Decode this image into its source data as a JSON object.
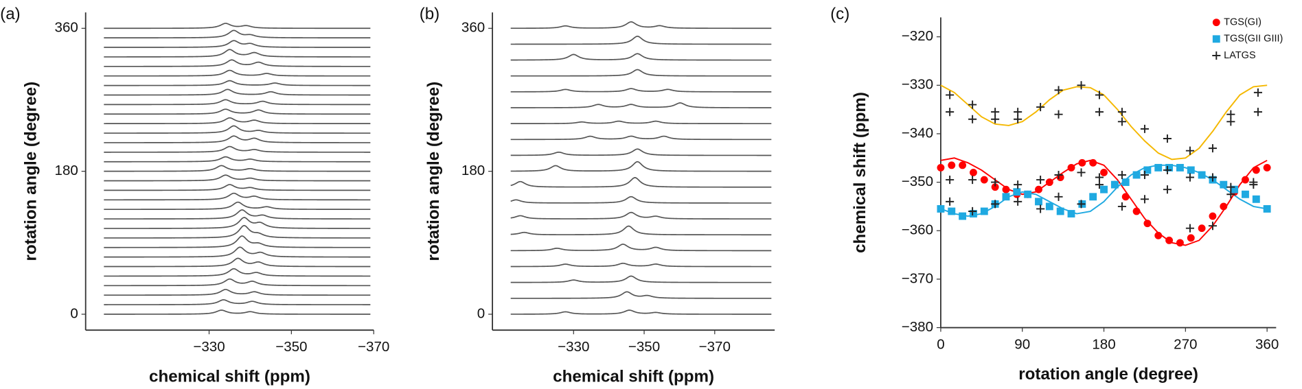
{
  "chart_data": [
    {
      "type": "stacked_spectra",
      "panel_label": "(a)",
      "x_label": "chemical shift (ppm)",
      "y_label": "rotation angle (degree)",
      "xlim": [
        -300,
        -370
      ],
      "ylim": [
        -20,
        380
      ],
      "xticks": [
        {
          "value": -330,
          "label": "−330"
        },
        {
          "value": -350,
          "label": "−350"
        },
        {
          "value": -370,
          "label": "−370"
        }
      ],
      "yticks": [
        0,
        180,
        360
      ],
      "color": "#555555",
      "traces": [
        {
          "angle": 0,
          "peaks": [
            -333,
            -340
          ],
          "heights": [
            5,
            3
          ]
        },
        {
          "angle": 12,
          "peaks": [
            -333.5,
            -340.5
          ],
          "heights": [
            6,
            4
          ]
        },
        {
          "angle": 24,
          "peaks": [
            -334,
            -341
          ],
          "heights": [
            7,
            4
          ]
        },
        {
          "angle": 36,
          "peaks": [
            -335,
            -340.5
          ],
          "heights": [
            8,
            5
          ]
        },
        {
          "angle": 48,
          "peaks": [
            -336,
            -341.5
          ],
          "heights": [
            9,
            4
          ]
        },
        {
          "angle": 60,
          "peaks": [
            -337,
            -342
          ],
          "heights": [
            10,
            5
          ]
        },
        {
          "angle": 72,
          "peaks": [
            -337.5,
            -342.5
          ],
          "heights": [
            12,
            5
          ]
        },
        {
          "angle": 84,
          "peaks": [
            -338,
            -342
          ],
          "heights": [
            14,
            4
          ]
        },
        {
          "angle": 96,
          "peaks": [
            -338.5,
            -342
          ],
          "heights": [
            15,
            4
          ]
        },
        {
          "angle": 108,
          "peaks": [
            -338.5,
            -342.4
          ],
          "heights": [
            13,
            6
          ]
        },
        {
          "angle": 120,
          "peaks": [
            -338,
            -343
          ],
          "heights": [
            11,
            4
          ]
        },
        {
          "angle": 132,
          "peaks": [
            -337,
            -344
          ],
          "heights": [
            9,
            3
          ]
        },
        {
          "angle": 144,
          "peaks": [
            -336,
            -341
          ],
          "heights": [
            8,
            4
          ]
        },
        {
          "angle": 156,
          "peaks": [
            -335,
            -340
          ],
          "heights": [
            7,
            3
          ]
        },
        {
          "angle": 168,
          "peaks": [
            -334,
            -340
          ],
          "heights": [
            7,
            3
          ]
        },
        {
          "angle": 180,
          "peaks": [
            -333,
            -340
          ],
          "heights": [
            7,
            3
          ]
        },
        {
          "angle": 192,
          "peaks": [
            -334,
            -340
          ],
          "heights": [
            6,
            3
          ]
        },
        {
          "angle": 204,
          "peaks": [
            -335,
            -341
          ],
          "heights": [
            7,
            3
          ]
        },
        {
          "angle": 216,
          "peaks": [
            -336,
            -341
          ],
          "heights": [
            8,
            5
          ]
        },
        {
          "angle": 228,
          "peaks": [
            -336,
            -342
          ],
          "heights": [
            9,
            3
          ]
        },
        {
          "angle": 240,
          "peaks": [
            -335,
            -341
          ],
          "heights": [
            7,
            4
          ]
        },
        {
          "angle": 252,
          "peaks": [
            -334,
            -342
          ],
          "heights": [
            6,
            5
          ]
        },
        {
          "angle": 264,
          "peaks": [
            -334,
            -343
          ],
          "heights": [
            6,
            4
          ]
        },
        {
          "angle": 276,
          "peaks": [
            -334.5,
            -345
          ],
          "heights": [
            7,
            4
          ]
        },
        {
          "angle": 288,
          "peaks": [
            -335,
            -346
          ],
          "heights": [
            6,
            3
          ]
        },
        {
          "angle": 300,
          "peaks": [
            -335,
            -344
          ],
          "heights": [
            7,
            3
          ]
        },
        {
          "angle": 312,
          "peaks": [
            -335.5,
            -342
          ],
          "heights": [
            8,
            5
          ]
        },
        {
          "angle": 324,
          "peaks": [
            -335,
            -341
          ],
          "heights": [
            9,
            5
          ]
        },
        {
          "angle": 336,
          "peaks": [
            -336,
            -340
          ],
          "heights": [
            8,
            4
          ]
        },
        {
          "angle": 348,
          "peaks": [
            -336,
            -340
          ],
          "heights": [
            9,
            3
          ]
        },
        {
          "angle": 360,
          "peaks": [
            -334,
            -339
          ],
          "heights": [
            6,
            3
          ]
        }
      ]
    },
    {
      "type": "stacked_spectra",
      "panel_label": "(b)",
      "x_label": "chemical shift (ppm)",
      "y_label": "rotation angle (degree)",
      "xlim": [
        -307,
        -387
      ],
      "ylim": [
        -20,
        380
      ],
      "xticks": [
        {
          "value": -330,
          "label": "−330"
        },
        {
          "value": -350,
          "label": "−350"
        },
        {
          "value": -370,
          "label": "−370"
        }
      ],
      "yticks": [
        0,
        180,
        360
      ],
      "color": "#555555",
      "traces": [
        {
          "angle": 0,
          "peaks": [
            -327.7,
            -345.8,
            -353.3
          ],
          "heights": [
            3,
            5,
            2
          ]
        },
        {
          "angle": 20,
          "peaks": [
            -345.1,
            -350.9
          ],
          "heights": [
            8,
            3
          ]
        },
        {
          "angle": 40,
          "peaks": [
            -330,
            -346.3
          ],
          "heights": [
            3,
            8
          ]
        },
        {
          "angle": 60,
          "peaks": [
            -327.7,
            -344,
            -353.3
          ],
          "heights": [
            3,
            4,
            3
          ]
        },
        {
          "angle": 80,
          "peaks": [
            -325.3,
            -344,
            -353.3
          ],
          "heights": [
            3,
            8,
            4
          ]
        },
        {
          "angle": 100,
          "peaks": [
            -316,
            -345.6
          ],
          "heights": [
            3,
            11
          ]
        },
        {
          "angle": 120,
          "peaks": [
            -314.9,
            -346.3,
            -353.3
          ],
          "heights": [
            4,
            8,
            3
          ]
        },
        {
          "angle": 140,
          "peaks": [
            -313.7,
            -346.3
          ],
          "heights": [
            4,
            8
          ]
        },
        {
          "angle": 160,
          "peaks": [
            -314.9,
            -347.4
          ],
          "heights": [
            7,
            12
          ]
        },
        {
          "angle": 180,
          "peaks": [
            -324.9,
            -348.1
          ],
          "heights": [
            7,
            12
          ]
        },
        {
          "angle": 200,
          "peaks": [
            -325.8,
            -348.1
          ],
          "heights": [
            4,
            8
          ]
        },
        {
          "angle": 220,
          "peaks": [
            -334.7,
            -346.3,
            -355.6
          ],
          "heights": [
            4,
            4,
            4
          ]
        },
        {
          "angle": 240,
          "peaks": [
            -332.3,
            -342.8,
            -353.3
          ],
          "heights": [
            2,
            3,
            3
          ]
        },
        {
          "angle": 260,
          "peaks": [
            -337,
            -346.3,
            -360.2
          ],
          "heights": [
            4,
            4,
            6
          ]
        },
        {
          "angle": 280,
          "peaks": [
            -327.7,
            -346.3,
            -356.7
          ],
          "heights": [
            3,
            4,
            3
          ]
        },
        {
          "angle": 300,
          "peaks": [
            -348.1
          ],
          "heights": [
            8
          ]
        },
        {
          "angle": 320,
          "peaks": [
            -330,
            -348.1
          ],
          "heights": [
            7,
            8
          ]
        },
        {
          "angle": 340,
          "peaks": [
            -348.1
          ],
          "heights": [
            10
          ]
        },
        {
          "angle": 360,
          "peaks": [
            -327.7,
            -346.3,
            -354.4
          ],
          "heights": [
            3,
            8,
            3
          ]
        }
      ]
    },
    {
      "type": "scatter",
      "panel_label": "(c)",
      "x_label": "rotation angle (degree)",
      "y_label": "chemical shift (ppm)",
      "xlim": [
        0,
        370
      ],
      "ylim": [
        -380,
        -316
      ],
      "xticks": [
        0,
        90,
        180,
        270,
        360
      ],
      "yticks": [
        {
          "value": -380,
          "label": "−380"
        },
        {
          "value": -370,
          "label": "−370"
        },
        {
          "value": -360,
          "label": "−360"
        },
        {
          "value": -350,
          "label": "−350"
        },
        {
          "value": -340,
          "label": "−340"
        },
        {
          "value": -330,
          "label": "−330"
        },
        {
          "value": -320,
          "label": "−320"
        }
      ],
      "legend": "top-right",
      "series": [
        {
          "name": "TGS(GI)",
          "color": "#ff0000",
          "marker": "circle",
          "x": [
            0,
            12,
            24,
            36,
            48,
            60,
            72,
            84,
            96,
            108,
            120,
            132,
            144,
            156,
            168,
            180,
            192,
            204,
            216,
            228,
            240,
            252,
            264,
            276,
            288,
            300,
            312,
            324,
            336,
            348,
            360
          ],
          "values": [
            -347,
            -346.5,
            -346.5,
            -348,
            -349.5,
            -351,
            -351.5,
            -352.5,
            -352.5,
            -351.5,
            -350,
            -349,
            -347,
            -346,
            -346,
            -348,
            -350.5,
            -353,
            -356,
            -358.5,
            -361,
            -362,
            -362.5,
            -361.5,
            -359.5,
            -357,
            -355,
            -352,
            -349.5,
            -347.5,
            -347
          ]
        },
        {
          "name": "TGS(GII GIII)",
          "color": "#1fa9e1",
          "marker": "square",
          "x": [
            0,
            12,
            24,
            36,
            48,
            60,
            72,
            84,
            96,
            108,
            120,
            132,
            144,
            156,
            168,
            180,
            192,
            204,
            216,
            228,
            240,
            252,
            264,
            276,
            288,
            300,
            312,
            324,
            336,
            348,
            360
          ],
          "values": [
            -355.5,
            -356,
            -357,
            -356.5,
            -356,
            -354.5,
            -353,
            -352,
            -352.5,
            -354,
            -355,
            -356,
            -356.5,
            -354.5,
            -353,
            -351.5,
            -350.5,
            -350,
            -348.5,
            -347.5,
            -347,
            -347,
            -347,
            -347.5,
            -348.5,
            -349.5,
            -350.5,
            -351.5,
            -352.5,
            -353.5,
            -355.5
          ]
        },
        {
          "name": "LATGS",
          "color": "#222222",
          "marker": "plus",
          "x": [
            10,
            10,
            35,
            35,
            60,
            60,
            85,
            85,
            110,
            130,
            130,
            155,
            175,
            175,
            200,
            200,
            225,
            250,
            275,
            300,
            320,
            320,
            350,
            350,
            10,
            10,
            35,
            35,
            60,
            60,
            85,
            85,
            110,
            110,
            130,
            130,
            155,
            155,
            175,
            175,
            200,
            200,
            225,
            225,
            250,
            250,
            275,
            275,
            300,
            300,
            320,
            320,
            345,
            345
          ],
          "values": [
            -332,
            -335.5,
            -334,
            -337,
            -335.5,
            -337,
            -335.5,
            -337,
            -334.5,
            -331,
            -336,
            -330,
            -332,
            -335.5,
            -335.5,
            -337.5,
            -339,
            -341,
            -343.5,
            -343,
            -336,
            -337.5,
            -331.5,
            -335.5,
            -349.5,
            -354,
            -349.5,
            -356,
            -350,
            -354.5,
            -350.5,
            -354,
            -349.5,
            -355.5,
            -348.5,
            -353,
            -348,
            -354.5,
            -349,
            -350.5,
            -348.5,
            -355,
            -348.5,
            -353.5,
            -347.5,
            -351.5,
            -349,
            -359.5,
            -349,
            -359,
            -351,
            -352.5,
            -350,
            -350.5
          ]
        },
        {
          "color": "#f5b800",
          "marker": "line",
          "x": [
            0,
            15,
            30,
            45,
            60,
            75,
            90,
            105,
            120,
            135,
            150,
            165,
            180,
            195,
            210,
            225,
            240,
            255,
            270,
            285,
            300,
            315,
            330,
            345,
            360
          ],
          "values": [
            -330,
            -331.5,
            -334,
            -336.5,
            -338,
            -338.3,
            -337.5,
            -335.5,
            -333,
            -331,
            -330.3,
            -330.5,
            -332,
            -335,
            -338.5,
            -341.5,
            -344,
            -345.3,
            -345,
            -343,
            -339.5,
            -335.5,
            -332,
            -330.3,
            -330
          ]
        },
        {
          "color": "#ff0000",
          "marker": "line",
          "x": [
            0,
            15,
            30,
            45,
            60,
            75,
            90,
            105,
            120,
            135,
            150,
            165,
            180,
            195,
            210,
            225,
            240,
            255,
            270,
            285,
            300,
            315,
            330,
            345,
            360
          ],
          "values": [
            -345.5,
            -345,
            -346,
            -347.5,
            -349.5,
            -351.5,
            -352.5,
            -352,
            -350,
            -348,
            -346.2,
            -345.5,
            -346.5,
            -349.5,
            -353.5,
            -357.5,
            -360.5,
            -362.5,
            -363,
            -362,
            -359,
            -355,
            -350.5,
            -347,
            -345.5
          ]
        },
        {
          "color": "#1fa9e1",
          "marker": "line",
          "x": [
            0,
            15,
            30,
            45,
            60,
            75,
            90,
            105,
            120,
            135,
            150,
            165,
            180,
            195,
            210,
            225,
            240,
            255,
            270,
            285,
            300,
            315,
            330,
            345,
            360
          ],
          "values": [
            -355.5,
            -356.5,
            -357,
            -356.5,
            -355,
            -353,
            -352,
            -352.5,
            -354,
            -355.5,
            -356.5,
            -356,
            -354,
            -351,
            -348.5,
            -347,
            -346.5,
            -346.5,
            -347,
            -348,
            -349.5,
            -351.5,
            -353.5,
            -355,
            -355.5
          ]
        }
      ]
    }
  ]
}
